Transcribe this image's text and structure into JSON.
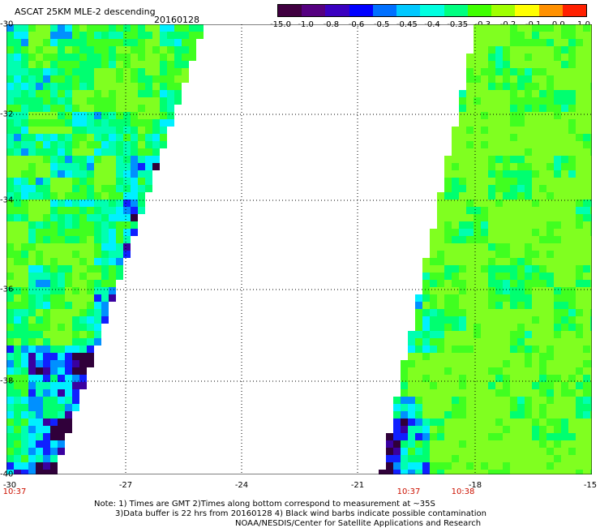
{
  "header": {
    "title": "ASCAT 25KM MLE-2 descending",
    "date": "20160128"
  },
  "colorbar": {
    "labels": [
      "-15.0",
      "-1.0",
      "-0.8",
      "-0.6",
      "-0.5",
      "-0.45",
      "-0.4",
      "-0.35",
      "-0.3",
      "-0.2",
      "-0.1",
      "0.0",
      "1.0"
    ],
    "colors": [
      "#400040",
      "#550080",
      "#3a00c0",
      "#0000ff",
      "#0070ff",
      "#00c8ff",
      "#00ffe0",
      "#00ff80",
      "#40ff00",
      "#a0ff00",
      "#ffff00",
      "#ff9000",
      "#ff2000"
    ]
  },
  "map": {
    "latitudes": [
      "-30",
      "-32",
      "-34",
      "-36",
      "-38",
      "-40"
    ],
    "longitudes": [
      "-30",
      "-27",
      "-24",
      "-21",
      "-18",
      "-15"
    ],
    "times": [
      "10:37",
      "10:37",
      "10:38"
    ]
  },
  "notes": {
    "line1": "Note: 1) Times are GMT 2)Times along bottom correspond to measurement at ~35S",
    "line2": "3)Data buffer is 22 hrs from 20160128 4) Black wind barbs indicate possible contamination",
    "line3": "NOAA/NESDIS/Center for Satellite Applications and Research"
  }
}
